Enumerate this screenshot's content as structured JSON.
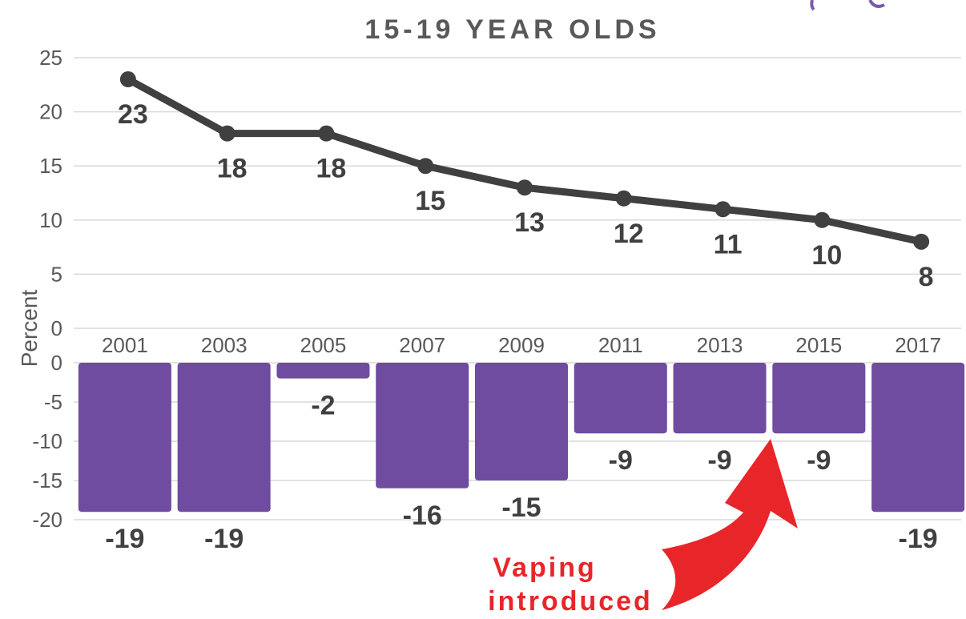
{
  "chart_data": {
    "type": "line+bar",
    "title": "15-19 YEAR OLDS",
    "ylabel": "Percent",
    "categories": [
      "2001",
      "2003",
      "2005",
      "2007",
      "2009",
      "2011",
      "2013",
      "2015",
      "2017"
    ],
    "line": {
      "ylim": [
        0,
        25
      ],
      "yticks": [
        "25",
        "20",
        "15",
        "10",
        "5",
        "0"
      ],
      "values": [
        23,
        18,
        18,
        15,
        13,
        12,
        11,
        10,
        8
      ],
      "color": "#404040"
    },
    "bars": {
      "ylim": [
        -20,
        0
      ],
      "yticks": [
        "0",
        "-5",
        "-10",
        "-15",
        "-20"
      ],
      "values": [
        -19,
        -19,
        -2,
        -16,
        -15,
        -9,
        -9,
        -9,
        -19
      ],
      "color": "#6f4c9f"
    },
    "annotation": {
      "lines": [
        "Vaping",
        "introduced"
      ],
      "color": "#e8262a"
    }
  }
}
